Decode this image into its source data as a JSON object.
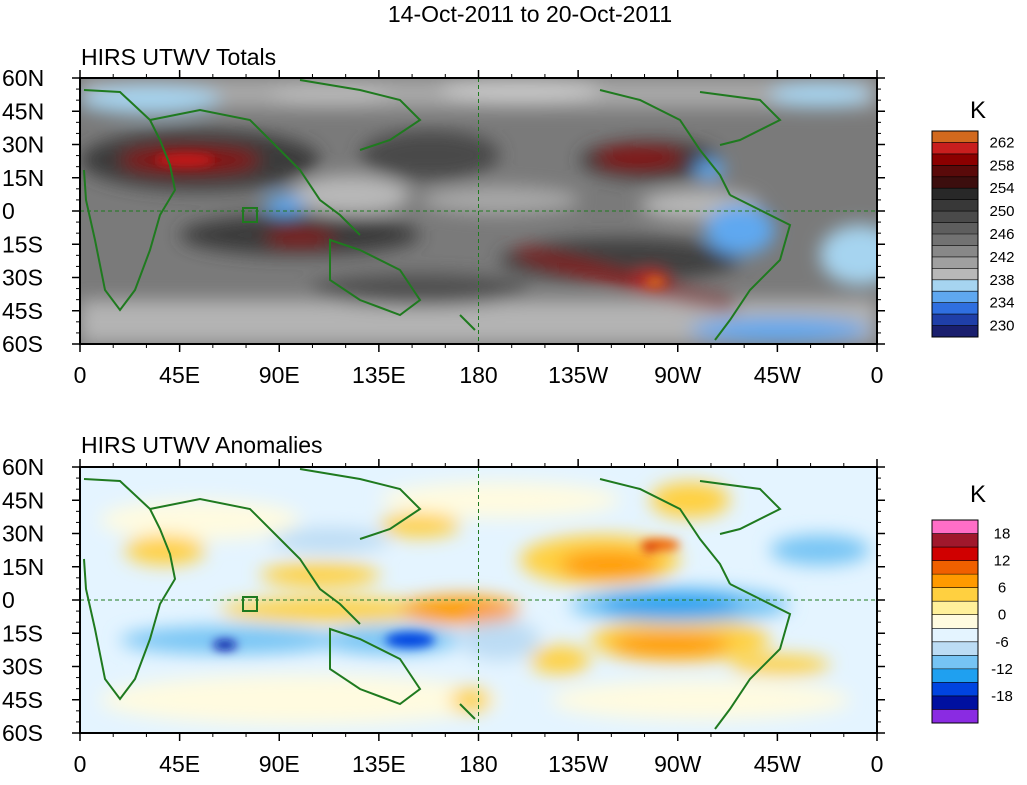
{
  "figure": {
    "title": "14-Oct-2011 to 20-Oct-2011",
    "colors": {
      "coast": "#1f7a1f",
      "frame": "#000000"
    }
  },
  "axes": {
    "lat_labels": [
      "60N",
      "45N",
      "30N",
      "15N",
      "0",
      "15S",
      "30S",
      "45S",
      "60S"
    ],
    "lon_labels": [
      "0",
      "45E",
      "90E",
      "135E",
      "180",
      "135W",
      "90W",
      "45W",
      "0"
    ],
    "lat_range": [
      -60,
      60
    ],
    "lon_range": [
      0,
      360
    ]
  },
  "panels": [
    {
      "id": "totals",
      "title": "HIRS UTWV Totals",
      "unit": "K",
      "colorbar": {
        "labels": [
          "262",
          "258",
          "254",
          "250",
          "246",
          "242",
          "238",
          "234",
          "230"
        ],
        "colors": [
          "#d2691e",
          "#c81e1e",
          "#8b0000",
          "#5a0a0a",
          "#3c0e0e",
          "#282828",
          "#383838",
          "#4a4a4a",
          "#5e5e5e",
          "#727272",
          "#888888",
          "#a0a0a0",
          "#b8b8b8",
          "#a6d4f0",
          "#5fa8f0",
          "#2f6fe0",
          "#1f3fa8",
          "#1a1f6e"
        ]
      }
    },
    {
      "id": "anomalies",
      "title": "HIRS UTWV Anomalies",
      "unit": "K",
      "colorbar": {
        "labels": [
          "18",
          "12",
          "6",
          "0",
          "-6",
          "-12",
          "-18"
        ],
        "colors": [
          "#ff6ec7",
          "#a0182c",
          "#d00000",
          "#f06000",
          "#ff9a00",
          "#ffd040",
          "#fff09a",
          "#fffbe0",
          "#e4f4ff",
          "#bcdcf4",
          "#76c4f4",
          "#1fa0f0",
          "#0044e0",
          "#0010a0",
          "#8a2be2"
        ]
      }
    }
  ]
}
